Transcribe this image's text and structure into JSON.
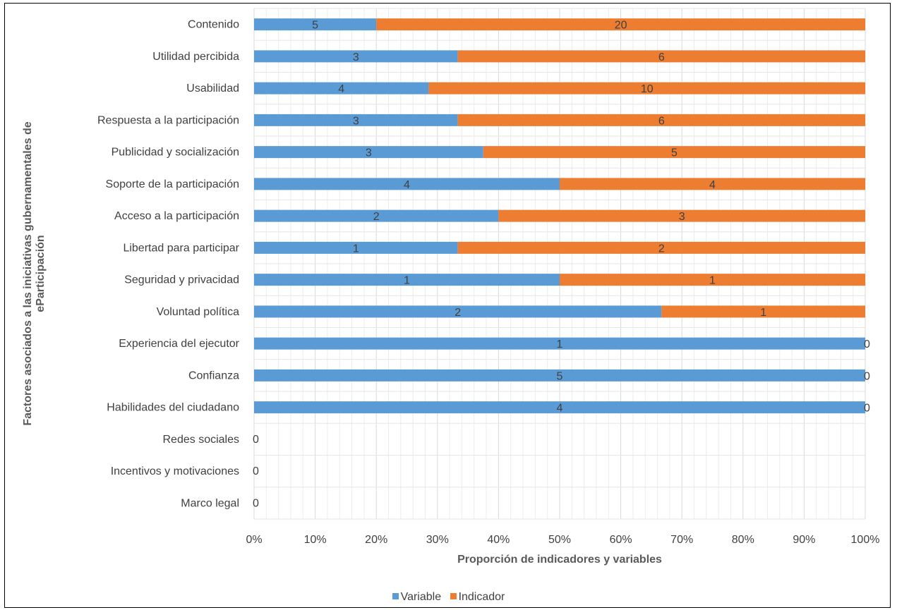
{
  "chart_data": {
    "type": "bar",
    "orientation": "horizontal",
    "stacking": "percent",
    "xlabel": "Proporción de indicadores y variables",
    "ylabel": "Factores asociados a las iniciativas gubernamentales de eParticipación",
    "xticks": [
      "0%",
      "10%",
      "20%",
      "30%",
      "40%",
      "50%",
      "60%",
      "70%",
      "80%",
      "90%",
      "100%"
    ],
    "xlim": [
      0,
      100
    ],
    "grid": true,
    "legend_position": "bottom",
    "categories": [
      "Contenido",
      "Utilidad percibida",
      "Usabilidad",
      "Respuesta a la participación",
      "Publicidad y socialización",
      "Soporte de la participación",
      "Acceso a la participación",
      "Libertad para participar",
      "Seguridad y privacidad",
      "Voluntad política",
      "Experiencia del ejecutor",
      "Confianza",
      "Habilidades del ciudadano",
      "Redes sociales",
      "Incentivos y motivaciones",
      "Marco legal"
    ],
    "series": [
      {
        "name": "Variable",
        "color": "#5B9BD5",
        "values": [
          5,
          3,
          4,
          3,
          3,
          4,
          2,
          1,
          1,
          2,
          1,
          5,
          4,
          0,
          0,
          0
        ]
      },
      {
        "name": "Indicador",
        "color": "#ED7D31",
        "values": [
          20,
          6,
          10,
          6,
          5,
          4,
          3,
          2,
          1,
          1,
          0,
          0,
          0,
          0,
          0,
          0
        ]
      }
    ]
  },
  "legend": {
    "items": [
      {
        "label": "Variable",
        "color": "#5B9BD5"
      },
      {
        "label": "Indicador",
        "color": "#ED7D31"
      }
    ]
  }
}
